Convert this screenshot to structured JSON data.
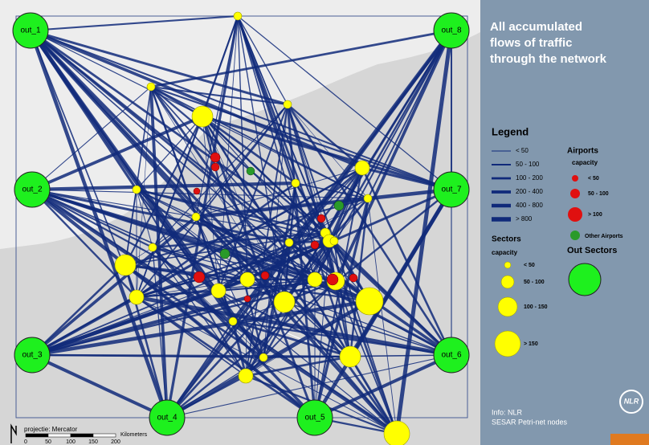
{
  "title": [
    "All accumulated",
    "flows of traffic",
    "through the network"
  ],
  "out_nodes": [
    "out_1",
    "out_8",
    "out_2",
    "out_7",
    "out_3",
    "out_6",
    "out_4",
    "out_5"
  ],
  "legend": {
    "title": "Legend",
    "flows": [
      "< 50",
      "50 - 100",
      "100 - 200",
      "200 - 400",
      "400 - 800",
      "> 800"
    ],
    "airports": {
      "title": "Airports",
      "subtitle": "capacity",
      "items": [
        "< 50",
        "50 - 100",
        "> 100"
      ],
      "other": "Other Airports"
    },
    "sectors": {
      "title": "Sectors",
      "subtitle": "capacity",
      "items": [
        "< 50",
        "50 - 100",
        "100 - 150",
        "> 150"
      ]
    },
    "out_sectors": "Out Sectors"
  },
  "info": [
    "Info: NLR",
    "SESAR Petri-net nodes"
  ],
  "logo": "NLR",
  "map": {
    "projection": "projectie: Mercator",
    "scale_labels": [
      "0",
      "50",
      "100",
      "150",
      "200"
    ],
    "scale_unit": "Kilometers"
  }
}
